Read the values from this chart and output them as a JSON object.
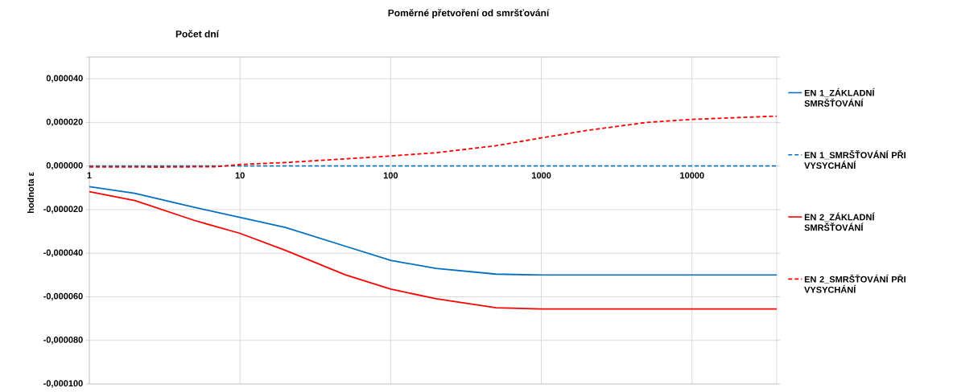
{
  "chart_data": {
    "type": "line",
    "title": "Poměrné přetvoření od smršťování",
    "xlabel": "Počet dní",
    "ylabel": "hodnota ε",
    "log": "x",
    "grid": true,
    "legend": "right",
    "xlim": [
      1,
      36500
    ],
    "ylim": [
      -0.0001,
      5e-05
    ],
    "xticks": [
      1,
      10,
      100,
      1000,
      10000
    ],
    "yticks": [
      {
        "value": -0.0001,
        "label": "-0,000100"
      },
      {
        "value": -8e-05,
        "label": "-0,000080"
      },
      {
        "value": -6e-05,
        "label": "-0,000060"
      },
      {
        "value": -4e-05,
        "label": "-0,000040"
      },
      {
        "value": -2e-05,
        "label": "-0,000020"
      },
      {
        "value": 0,
        "label": "0,000000"
      },
      {
        "value": 2e-05,
        "label": "0,000020"
      },
      {
        "value": 4e-05,
        "label": "0,000040"
      },
      {
        "value": 5e-05,
        "label": null
      }
    ],
    "series": [
      {
        "name": "EN 1_ZÁKLADNÍ SMRŠŤOVÁNÍ",
        "color": "#0070c0",
        "line_style": "solid",
        "x": [
          1,
          2,
          5,
          10,
          20,
          50,
          100,
          200,
          500,
          1000,
          10000,
          36500
        ],
        "values": [
          -9.5e-06,
          -1.25e-05,
          -1.9e-05,
          -2.36e-05,
          -2.82e-05,
          -3.68e-05,
          -4.33e-05,
          -4.7e-05,
          -4.96e-05,
          -5e-05,
          -5e-05,
          -5e-05
        ]
      },
      {
        "name": "EN 1_SMRŠŤOVÁNÍ PŘI VYSYCHÁNÍ",
        "color": "#0070c0",
        "line_style": "dashed",
        "x": [
          1,
          10,
          100,
          1000,
          10000,
          36500
        ],
        "values": [
          0,
          0,
          0,
          0,
          0,
          0
        ]
      },
      {
        "name": "EN 2_ZÁKLADNÍ SMRŠŤOVÁNÍ",
        "color": "#ff0000",
        "line_style": "solid",
        "x": [
          1,
          2,
          5,
          10,
          20,
          50,
          100,
          200,
          500,
          1000,
          10000,
          36500
        ],
        "values": [
          -1.18e-05,
          -1.58e-05,
          -2.5e-05,
          -3.09e-05,
          -3.87e-05,
          -4.99e-05,
          -5.65e-05,
          -6.09e-05,
          -6.5e-05,
          -6.56e-05,
          -6.56e-05,
          -6.56e-05
        ]
      },
      {
        "name": "EN 2_SMRŠŤOVÁNÍ PŘI VYSYCHÁNÍ",
        "color": "#ff0000",
        "line_style": "dashed",
        "x": [
          1,
          3,
          7,
          10,
          20,
          50,
          100,
          200,
          500,
          1000,
          2000,
          5000,
          10000,
          36500
        ],
        "values": [
          -4e-07,
          -5e-07,
          -3e-07,
          7e-07,
          1.6e-06,
          3.3e-06,
          4.6e-06,
          6.1e-06,
          9.3e-06,
          1.29e-05,
          1.63e-05,
          2e-05,
          2.14e-05,
          2.29e-05
        ]
      }
    ]
  }
}
